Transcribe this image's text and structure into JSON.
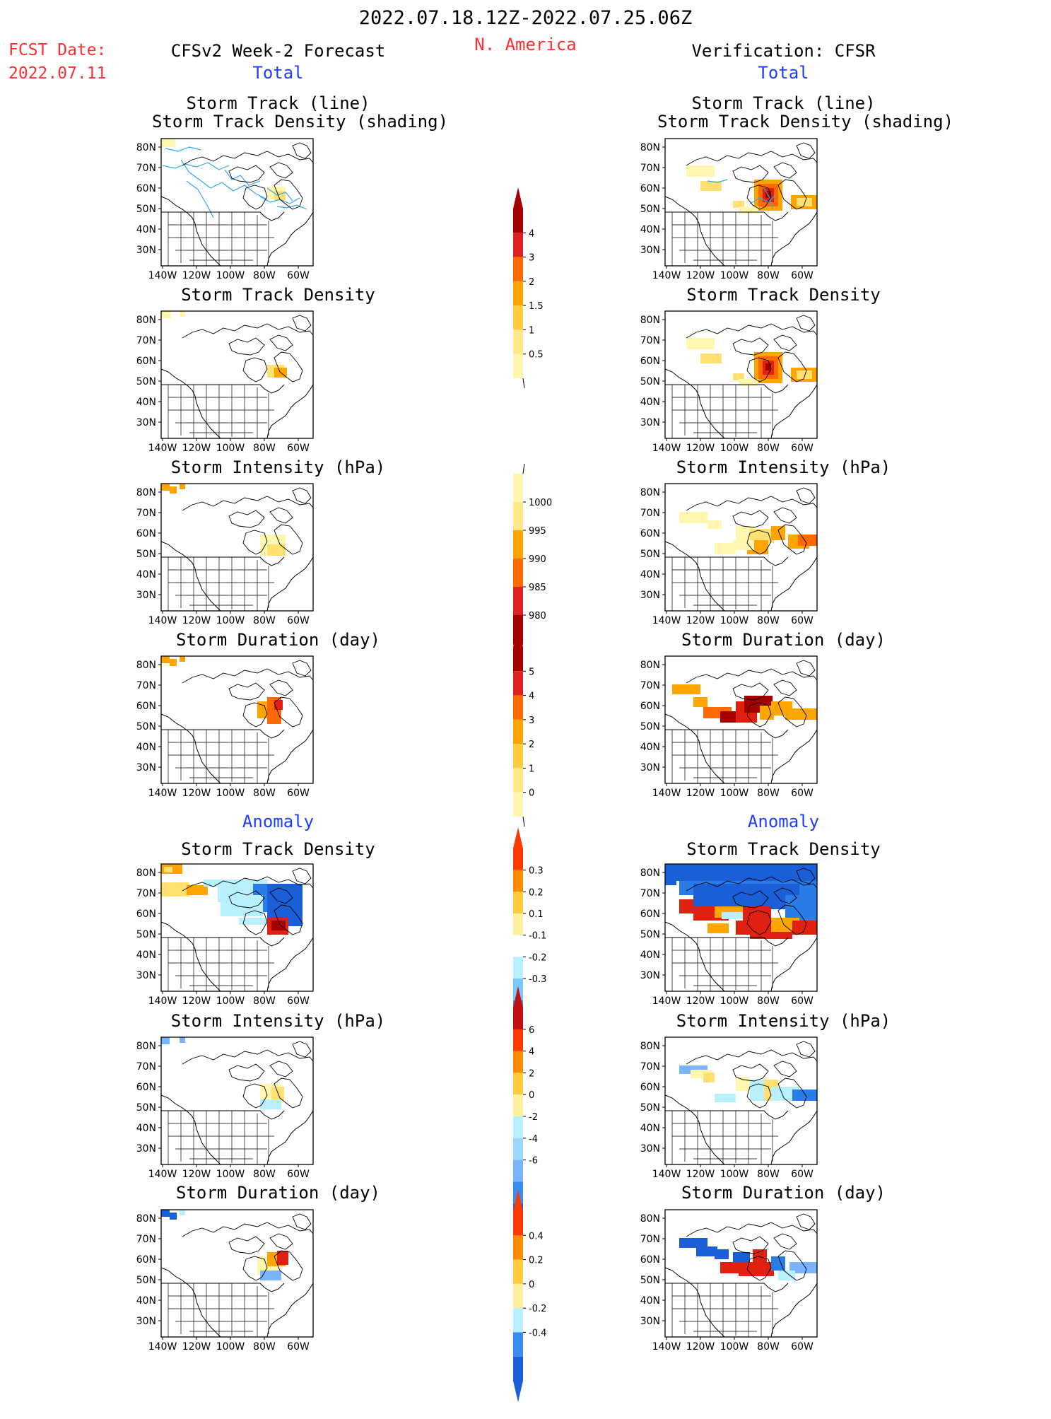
{
  "header": {
    "date_range": "2022.07.18.12Z-2022.07.25.06Z",
    "region": "N. America",
    "fcst_label": "FCST Date:",
    "fcst_date": "2022.07.11",
    "left_title": "CFSv2 Week-2 Forecast",
    "right_title": "Verification: CFSR",
    "total_label": "Total",
    "anomaly_label": "Anomaly"
  },
  "panel_titles": {
    "track_line": "Storm Track (line)",
    "track_shading": "Storm Track Density (shading)",
    "density": "Storm Track Density",
    "intensity": "Storm Intensity (hPa)",
    "duration": "Storm Duration (day)"
  },
  "axes": {
    "lat_ticks": [
      "80N",
      "70N",
      "60N",
      "50N",
      "40N",
      "30N"
    ],
    "lon_ticks": [
      "140W",
      "120W",
      "100W",
      "80W",
      "60W"
    ]
  },
  "colorbars": [
    {
      "name": "total-density",
      "labels": [
        "4",
        "3",
        "2",
        "1.5",
        "1",
        "0.5"
      ],
      "colors": [
        "#a50000",
        "#dd2020",
        "#ff6a00",
        "#ffa500",
        "#ffcc40",
        "#ffe88a",
        "#fff6b0"
      ]
    },
    {
      "name": "total-intensity",
      "labels": [
        "1000",
        "995",
        "990",
        "985",
        "980"
      ],
      "colors": [
        "#fff6b0",
        "#ffe88a",
        "#ffa500",
        "#ff6a00",
        "#dd2020",
        "#a50000"
      ]
    },
    {
      "name": "total-duration",
      "labels": [
        "5",
        "4",
        "3",
        "2",
        "1",
        "0"
      ],
      "colors": [
        "#a50000",
        "#dd2020",
        "#ff6a00",
        "#ffa500",
        "#ffcc40",
        "#ffe88a",
        "#fff6b0"
      ]
    },
    {
      "name": "anom-density",
      "labels": [
        "0.3",
        "0.2",
        "0.1",
        "-0.1",
        "-0.2",
        "-0.3"
      ],
      "colors": [
        "#ff3a00",
        "#ff8c00",
        "#ffcc40",
        "#fff0a0",
        "#ffffff",
        "#b8f0ff",
        "#7ac8ff",
        "#3a8cf0",
        "#1a5fd8"
      ]
    },
    {
      "name": "anom-intensity",
      "labels": [
        "6",
        "4",
        "2",
        "0",
        "-2",
        "-4",
        "-6"
      ],
      "colors": [
        "#c01010",
        "#ff3a00",
        "#ff8c00",
        "#ffcc40",
        "#fff0a0",
        "#b8f0ff",
        "#9ad8ff",
        "#7ab4ff",
        "#3a8cf0",
        "#1a5fd8"
      ]
    },
    {
      "name": "anom-duration",
      "labels": [
        "0.4",
        "0.2",
        "0",
        "-0.2",
        "-0.4"
      ],
      "colors": [
        "#ff3a00",
        "#ff8c00",
        "#ffcc40",
        "#fff0a0",
        "#b8f0ff",
        "#3a8cf0",
        "#1a5fd8"
      ]
    }
  ],
  "fill_colors": {
    "lightyellow": "#fff6b0",
    "yellow": "#ffe070",
    "orange": "#ffa500",
    "darkorange": "#ff6a00",
    "red": "#e02010",
    "darkred": "#a50000",
    "lightblue": "#b8f0ff",
    "blue": "#2a7ce8",
    "midblue": "#7ab4ff",
    "navy": "#1a5fd8"
  }
}
